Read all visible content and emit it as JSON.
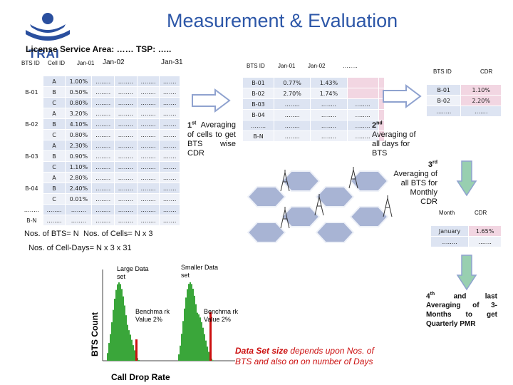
{
  "title": "Measurement & Evaluation",
  "logo_text": "TRAI",
  "area_label": "License Service Area: …… TSP: …..",
  "cell_table": {
    "headers": [
      "BTS ID",
      "Cell ID",
      "Jan-01",
      "Jan-02",
      "Jan-31"
    ],
    "rows": [
      {
        "bts": "",
        "cell": "A",
        "v": [
          "1.00%",
          "……..",
          "……..",
          "……..",
          "……."
        ]
      },
      {
        "bts": "B-01",
        "cell": "B",
        "v": [
          "0.50%",
          "……..",
          "……..",
          "……..",
          "……."
        ]
      },
      {
        "bts": "",
        "cell": "C",
        "v": [
          "0.80%",
          "……..",
          "……..",
          "……..",
          "……."
        ]
      },
      {
        "bts": "",
        "cell": "A",
        "v": [
          "3.20%",
          "……..",
          "……..",
          "……..",
          "……."
        ]
      },
      {
        "bts": "B-02",
        "cell": "B",
        "v": [
          "4.10%",
          "……..",
          "……..",
          "……..",
          "……."
        ]
      },
      {
        "bts": "",
        "cell": "C",
        "v": [
          "0.80%",
          "……..",
          "……..",
          "……..",
          "……."
        ]
      },
      {
        "bts": "",
        "cell": "A",
        "v": [
          "2.30%",
          "……..",
          "……..",
          "……..",
          "……."
        ]
      },
      {
        "bts": "B-03",
        "cell": "B",
        "v": [
          "0.90%",
          "……..",
          "……..",
          "……..",
          "……."
        ]
      },
      {
        "bts": "",
        "cell": "C",
        "v": [
          "1.10%",
          "……..",
          "……..",
          "……..",
          "……."
        ]
      },
      {
        "bts": "",
        "cell": "A",
        "v": [
          "2.80%",
          "……..",
          "……..",
          "……..",
          "……."
        ]
      },
      {
        "bts": "B-04",
        "cell": "B",
        "v": [
          "2.40%",
          "……..",
          "……..",
          "……..",
          "……."
        ]
      },
      {
        "bts": "",
        "cell": "C",
        "v": [
          "0.01%",
          "……..",
          "……..",
          "……..",
          "……."
        ]
      },
      {
        "bts": "……..",
        "cell": "……..",
        "v": [
          "……..",
          "……..",
          "……..",
          "……..",
          "……."
        ]
      },
      {
        "bts": "B-N",
        "cell": "……..",
        "v": [
          "……..",
          "……..",
          "……..",
          "……..",
          "……."
        ]
      }
    ]
  },
  "bts_table": {
    "headers": [
      "BTS ID",
      "Jan-01",
      "Jan-02",
      "……..",
      ""
    ],
    "rows": [
      [
        "B-01",
        "0.77%",
        "1.43%",
        "",
        ""
      ],
      [
        "B-02",
        "2.70%",
        "1.74%",
        "",
        ""
      ],
      [
        "B-03",
        "……..",
        "……..",
        "……..",
        ""
      ],
      [
        "B-04",
        "……..",
        "……..",
        "……..",
        ""
      ],
      [
        "……..",
        "……..",
        "……..",
        "……..",
        ""
      ],
      [
        "B-N",
        "……..",
        "……..",
        "……..",
        ""
      ]
    ]
  },
  "cdr_table": {
    "headers": [
      "BTS ID",
      "CDR"
    ],
    "rows": [
      [
        "B-01",
        "1.10%"
      ],
      [
        "B-02",
        "2.20%"
      ],
      [
        "……..",
        "……."
      ]
    ]
  },
  "month_table": {
    "headers": [
      "Month",
      "CDR"
    ],
    "rows": [
      [
        "January",
        "1.65%"
      ],
      [
        "……..",
        "……."
      ]
    ]
  },
  "step1": {
    "sup": "st",
    "num": "1",
    "text": "Averaging of cells to get BTS wise CDR"
  },
  "step2": {
    "sup": "nd",
    "num": "2",
    "text": "Averaging of all days for BTS"
  },
  "step3": {
    "sup": "rd",
    "num": "3",
    "text": "Averaging of all BTS for Monthly CDR"
  },
  "step4": {
    "sup": "th",
    "num": "4",
    "text": "and last Averaging of 3-Months to get Quarterly PMR"
  },
  "nos_bts": "Nos. of BTS= N",
  "nos_cells": "Nos. of Cells= N x 3",
  "nos_celldays": "Nos. of Cell-Days= N x 3 x 31",
  "histogram": {
    "y_label": "BTS Count",
    "x_label": "Call Drop Rate",
    "large_label": "Large Data set",
    "small_label": "Smaller Data set",
    "bench_left": "Benchma rk Value 2%",
    "bench_right": "Benchma rk Value 2%"
  },
  "callout": {
    "bold": "Data Set size",
    "rest": " depends upon Nos. of BTS and also on on number of Days"
  },
  "colors": {
    "title": "#2d57a8",
    "arrow": "#8fa2cf",
    "down_arrow": "#98cfb0",
    "hist": "#3aa63a",
    "bench": "#cc1010"
  }
}
